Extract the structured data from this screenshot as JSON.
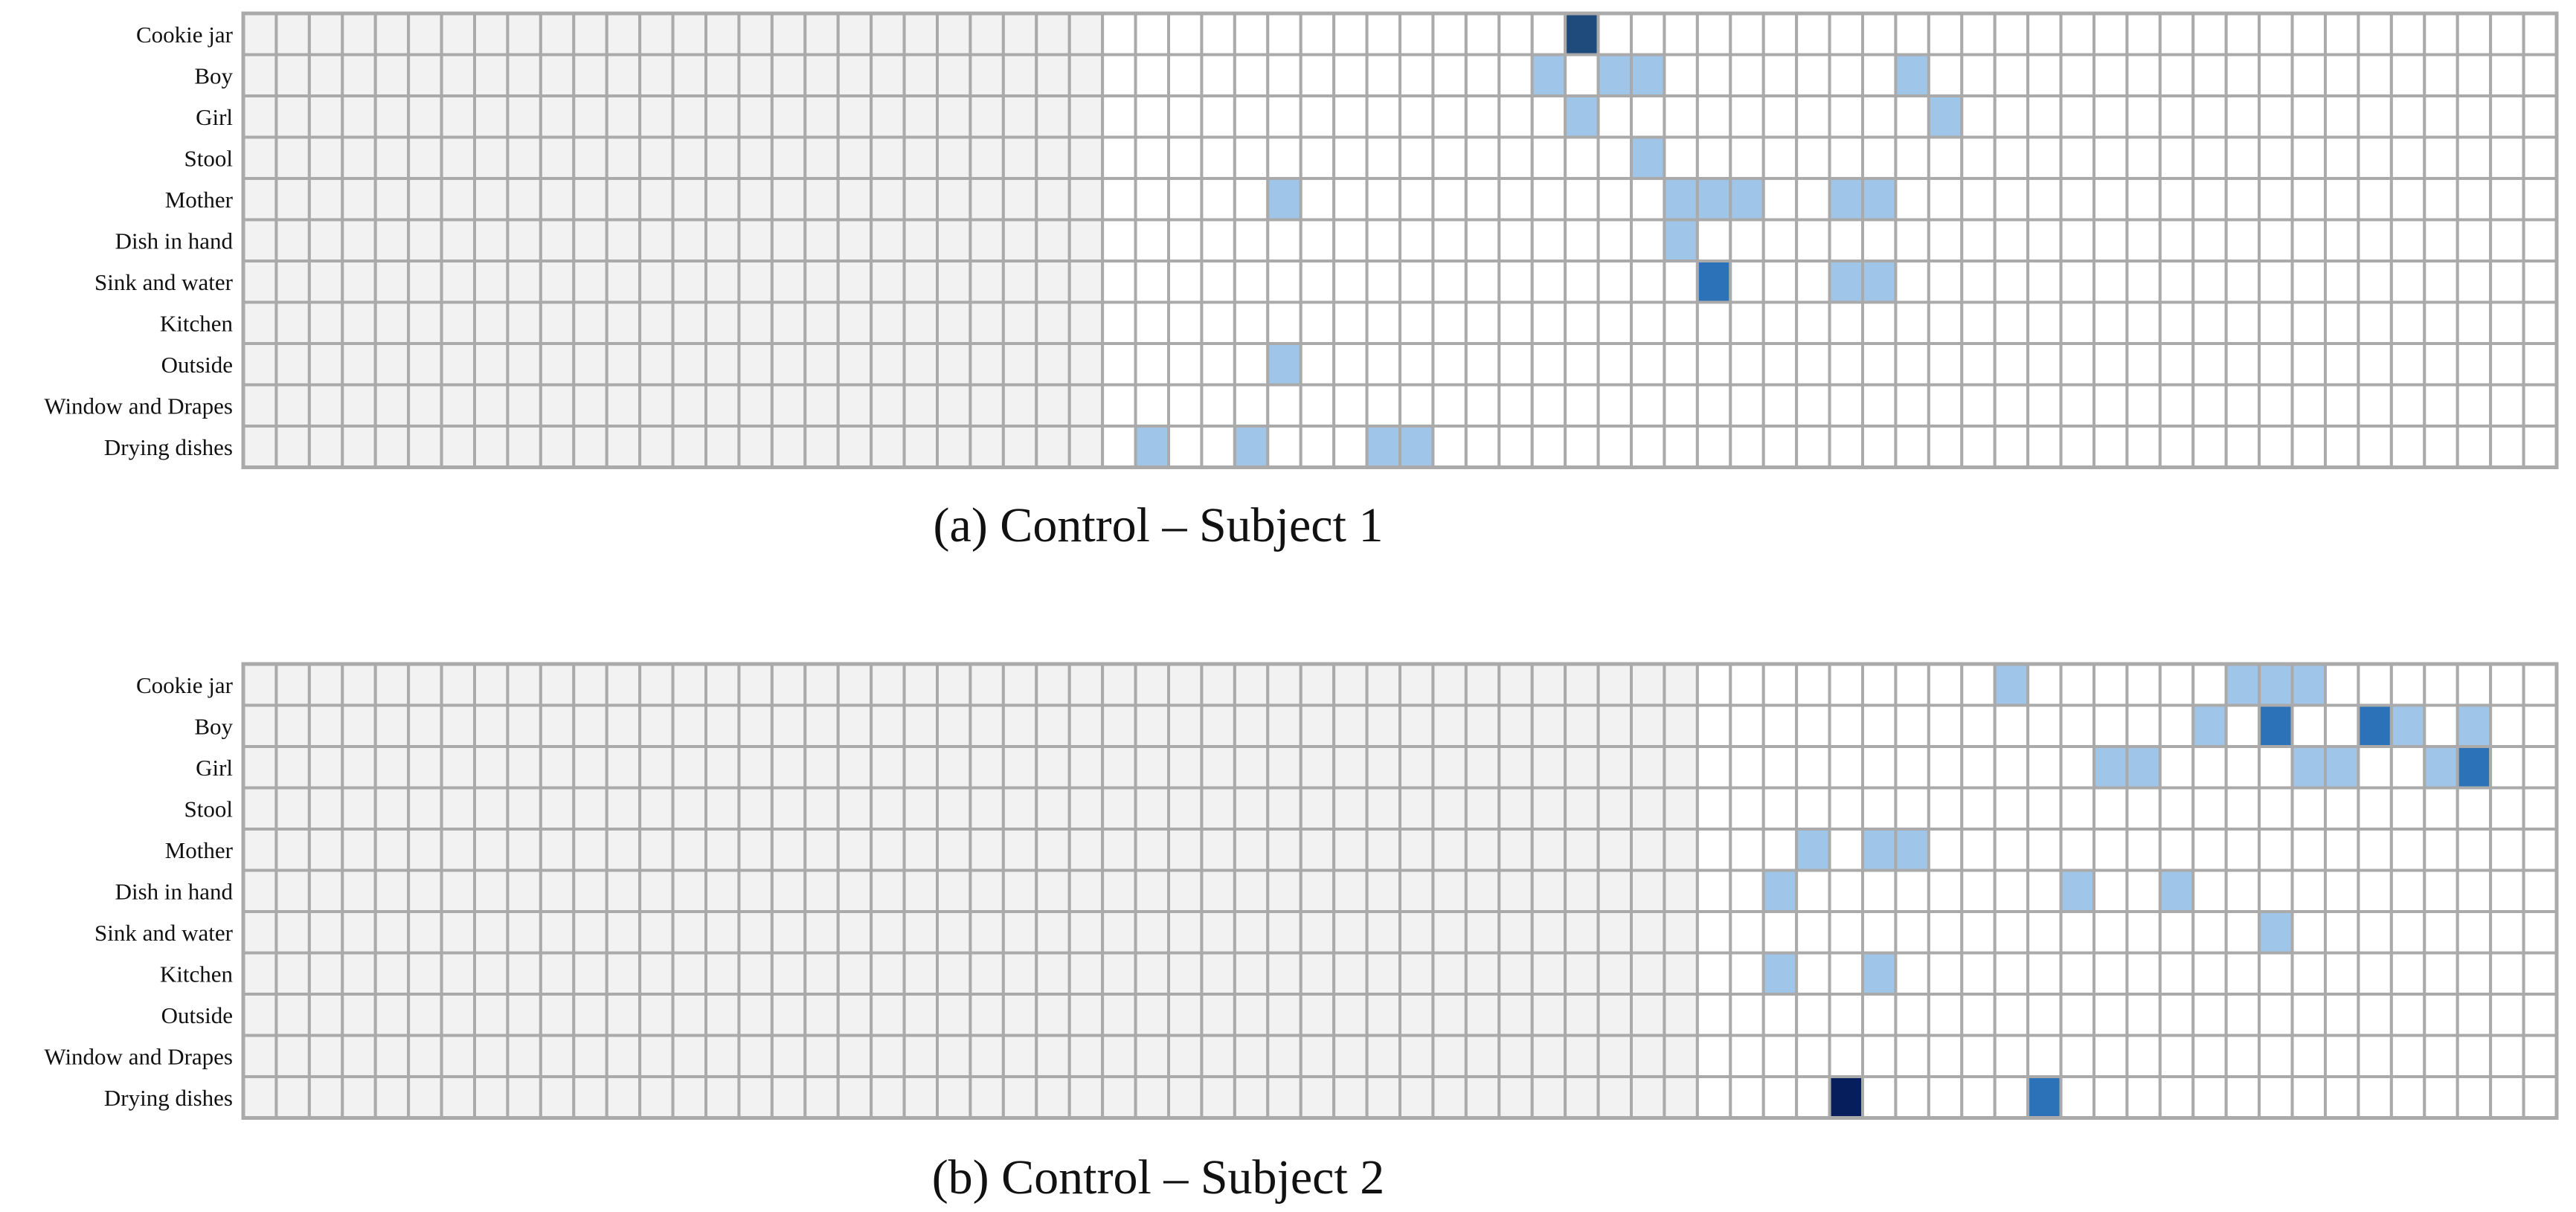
{
  "chart_data": [
    {
      "type": "heatmap",
      "caption": "(a) Control – Subject 1",
      "rows": [
        "Cookie jar",
        "Boy",
        "Girl",
        "Stool",
        "Mother",
        "Dish in hand",
        "Sink and water",
        "Kitchen",
        "Outside",
        "Window and Drapes",
        "Drying dishes"
      ],
      "n_columns": 70,
      "padding_columns": 26,
      "cells": [
        {
          "row": 0,
          "col": 40,
          "level": 4
        },
        {
          "row": 1,
          "col": 39,
          "level": 1
        },
        {
          "row": 1,
          "col": 41,
          "level": 1
        },
        {
          "row": 1,
          "col": 42,
          "level": 1
        },
        {
          "row": 1,
          "col": 50,
          "level": 1
        },
        {
          "row": 2,
          "col": 40,
          "level": 1
        },
        {
          "row": 2,
          "col": 51,
          "level": 1
        },
        {
          "row": 3,
          "col": 42,
          "level": 1
        },
        {
          "row": 4,
          "col": 31,
          "level": 1
        },
        {
          "row": 4,
          "col": 43,
          "level": 1
        },
        {
          "row": 4,
          "col": 44,
          "level": 1
        },
        {
          "row": 4,
          "col": 45,
          "level": 1
        },
        {
          "row": 4,
          "col": 48,
          "level": 1
        },
        {
          "row": 4,
          "col": 49,
          "level": 1
        },
        {
          "row": 5,
          "col": 43,
          "level": 1
        },
        {
          "row": 6,
          "col": 44,
          "level": 3
        },
        {
          "row": 6,
          "col": 48,
          "level": 1
        },
        {
          "row": 6,
          "col": 49,
          "level": 1
        },
        {
          "row": 8,
          "col": 31,
          "level": 1
        },
        {
          "row": 10,
          "col": 27,
          "level": 1
        },
        {
          "row": 10,
          "col": 30,
          "level": 1
        },
        {
          "row": 10,
          "col": 34,
          "level": 1
        },
        {
          "row": 10,
          "col": 35,
          "level": 1
        }
      ]
    },
    {
      "type": "heatmap",
      "caption": "(b) Control – Subject 2",
      "rows": [
        "Cookie jar",
        "Boy",
        "Girl",
        "Stool",
        "Mother",
        "Dish in hand",
        "Sink and water",
        "Kitchen",
        "Outside",
        "Window and Drapes",
        "Drying dishes"
      ],
      "n_columns": 70,
      "padding_columns": 44,
      "cells": [
        {
          "row": 0,
          "col": 53,
          "level": 1
        },
        {
          "row": 0,
          "col": 60,
          "level": 1
        },
        {
          "row": 0,
          "col": 61,
          "level": 1
        },
        {
          "row": 0,
          "col": 62,
          "level": 1
        },
        {
          "row": 1,
          "col": 59,
          "level": 1
        },
        {
          "row": 1,
          "col": 61,
          "level": 3
        },
        {
          "row": 1,
          "col": 64,
          "level": 3
        },
        {
          "row": 1,
          "col": 65,
          "level": 1
        },
        {
          "row": 1,
          "col": 67,
          "level": 1
        },
        {
          "row": 2,
          "col": 56,
          "level": 1
        },
        {
          "row": 2,
          "col": 57,
          "level": 1
        },
        {
          "row": 2,
          "col": 62,
          "level": 1
        },
        {
          "row": 2,
          "col": 63,
          "level": 1
        },
        {
          "row": 2,
          "col": 66,
          "level": 1
        },
        {
          "row": 2,
          "col": 67,
          "level": 3
        },
        {
          "row": 4,
          "col": 47,
          "level": 1
        },
        {
          "row": 4,
          "col": 49,
          "level": 1
        },
        {
          "row": 4,
          "col": 50,
          "level": 1
        },
        {
          "row": 5,
          "col": 46,
          "level": 1
        },
        {
          "row": 5,
          "col": 55,
          "level": 1
        },
        {
          "row": 5,
          "col": 58,
          "level": 1
        },
        {
          "row": 6,
          "col": 61,
          "level": 1
        },
        {
          "row": 7,
          "col": 46,
          "level": 1
        },
        {
          "row": 7,
          "col": 49,
          "level": 1
        },
        {
          "row": 10,
          "col": 48,
          "level": 5
        },
        {
          "row": 10,
          "col": 54,
          "level": 3
        }
      ]
    }
  ],
  "colors": {
    "padding": "#f2f2f2",
    "empty": "#ffffff",
    "grid": "#aaaaaa",
    "level_1": "#9fc6e8",
    "level_3": "#2b72b9",
    "level_4": "#1e4b7c",
    "level_5": "#061f5c"
  }
}
